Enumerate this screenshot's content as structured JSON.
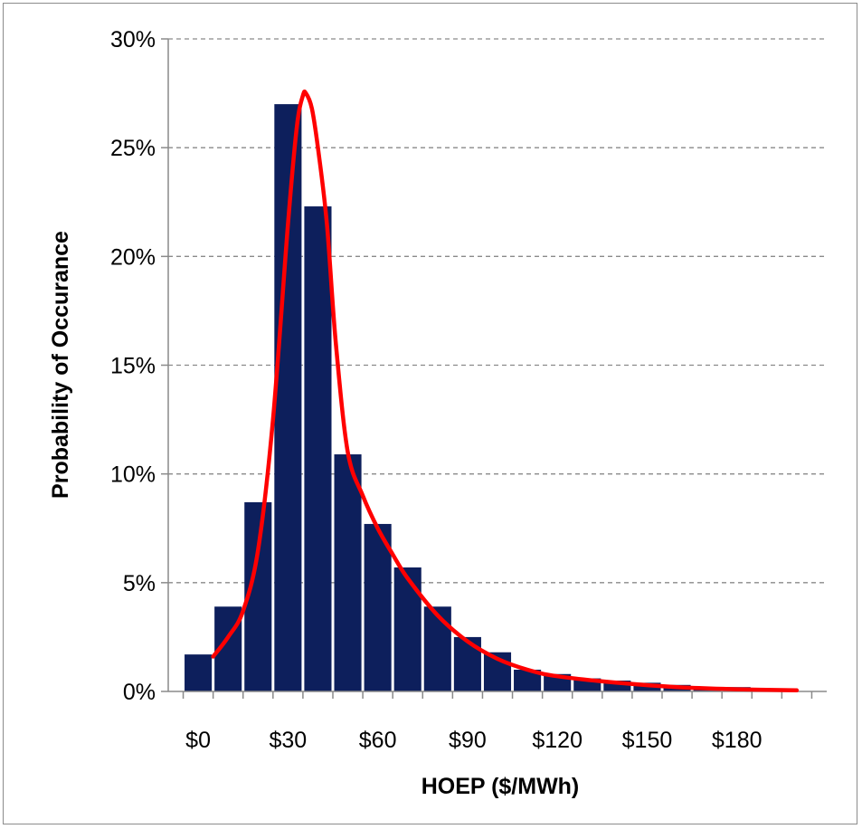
{
  "chart_data": {
    "type": "bar",
    "title": "",
    "xlabel": "HOEP ($/MWh)",
    "ylabel": "Probability of Occurance",
    "bin_width": 10,
    "bins_start": [
      0,
      10,
      20,
      30,
      40,
      50,
      60,
      70,
      80,
      90,
      100,
      110,
      120,
      130,
      140,
      150,
      160,
      170,
      180,
      190
    ],
    "values": [
      0.017,
      0.039,
      0.087,
      0.27,
      0.223,
      0.109,
      0.077,
      0.057,
      0.039,
      0.025,
      0.018,
      0.01,
      0.008,
      0.006,
      0.005,
      0.004,
      0.003,
      0.002,
      0.002,
      0.001
    ],
    "xlim": [
      -10,
      210
    ],
    "ylim": [
      0,
      0.3
    ],
    "x_ticks": [
      0,
      30,
      60,
      90,
      120,
      150,
      180
    ],
    "x_tick_labels": [
      "$0",
      "$30",
      "$60",
      "$90",
      "$120",
      "$150",
      "$180"
    ],
    "y_ticks": [
      0,
      0.05,
      0.1,
      0.15,
      0.2,
      0.25,
      0.3
    ],
    "y_tick_labels": [
      "0%",
      "5%",
      "10%",
      "15%",
      "20%",
      "25%",
      "30%"
    ],
    "grid": "horizontal dashed",
    "bar_color": "#0d1f5c",
    "curve_color": "#ff0000",
    "fitted_curve": {
      "x": [
        5,
        10,
        15,
        20,
        25,
        30,
        33,
        35,
        36,
        38,
        40,
        43,
        46,
        50,
        55,
        60,
        65,
        70,
        80,
        90,
        100,
        110,
        120,
        140,
        160,
        180,
        200
      ],
      "y": [
        0.016,
        0.025,
        0.037,
        0.065,
        0.125,
        0.215,
        0.26,
        0.274,
        0.275,
        0.268,
        0.25,
        0.215,
        0.16,
        0.11,
        0.09,
        0.075,
        0.063,
        0.052,
        0.035,
        0.023,
        0.015,
        0.01,
        0.007,
        0.004,
        0.002,
        0.001,
        0.0005
      ]
    }
  }
}
